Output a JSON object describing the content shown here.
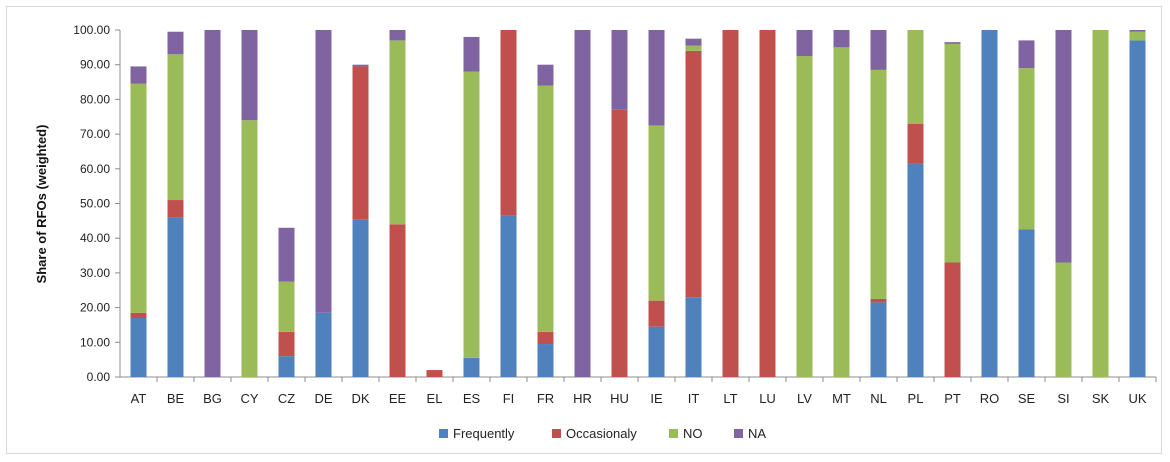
{
  "chart_data": {
    "type": "bar",
    "stacked": true,
    "title": "",
    "xlabel": "",
    "ylabel": "Share of RFOs (weighted)",
    "ylim": [
      0,
      100
    ],
    "yticks": [
      "0.00",
      "10.00",
      "20.00",
      "30.00",
      "40.00",
      "50.00",
      "60.00",
      "70.00",
      "80.00",
      "90.00",
      "100.00"
    ],
    "grid": false,
    "legend_position": "bottom",
    "categories": [
      "AT",
      "BE",
      "BG",
      "CY",
      "CZ",
      "DE",
      "DK",
      "EE",
      "EL",
      "ES",
      "FI",
      "FR",
      "HR",
      "HU",
      "IE",
      "IT",
      "LT",
      "LU",
      "LV",
      "MT",
      "NL",
      "PL",
      "PT",
      "RO",
      "SE",
      "SI",
      "SK",
      "UK"
    ],
    "series": [
      {
        "name": "Frequently",
        "color": "#4f81bd",
        "values": [
          17,
          46,
          0,
          0,
          6,
          18.5,
          45.5,
          0,
          0,
          5.5,
          46.5,
          9.5,
          0,
          0,
          14.5,
          23,
          0,
          0,
          0,
          0,
          21.5,
          61.5,
          0,
          100,
          42.5,
          0,
          0,
          97
        ]
      },
      {
        "name": "Occasionaly",
        "color": "#c0504d",
        "values": [
          1.5,
          5,
          0,
          0,
          7,
          0,
          44,
          44,
          2,
          0,
          53.5,
          3.5,
          0,
          77,
          7.5,
          71,
          100,
          100,
          0,
          0,
          1,
          11.5,
          33,
          0,
          0,
          0,
          0,
          0
        ]
      },
      {
        "name": "NO",
        "color": "#9bbb59",
        "values": [
          66,
          42,
          0,
          74,
          14.5,
          0,
          0,
          53,
          0,
          82.5,
          0,
          71,
          0,
          0,
          50.5,
          1.5,
          0,
          0,
          92.5,
          95,
          66,
          27,
          63,
          0,
          46.5,
          33,
          100,
          2.5
        ]
      },
      {
        "name": "NA",
        "color": "#8064a2",
        "values": [
          5,
          6.5,
          100,
          26,
          15.5,
          81.5,
          0.5,
          3,
          0,
          10,
          0,
          6,
          100,
          23,
          27.5,
          2,
          0,
          0,
          7.5,
          5,
          11.5,
          0,
          0.5,
          0,
          8,
          67,
          0,
          0.5
        ]
      }
    ]
  }
}
